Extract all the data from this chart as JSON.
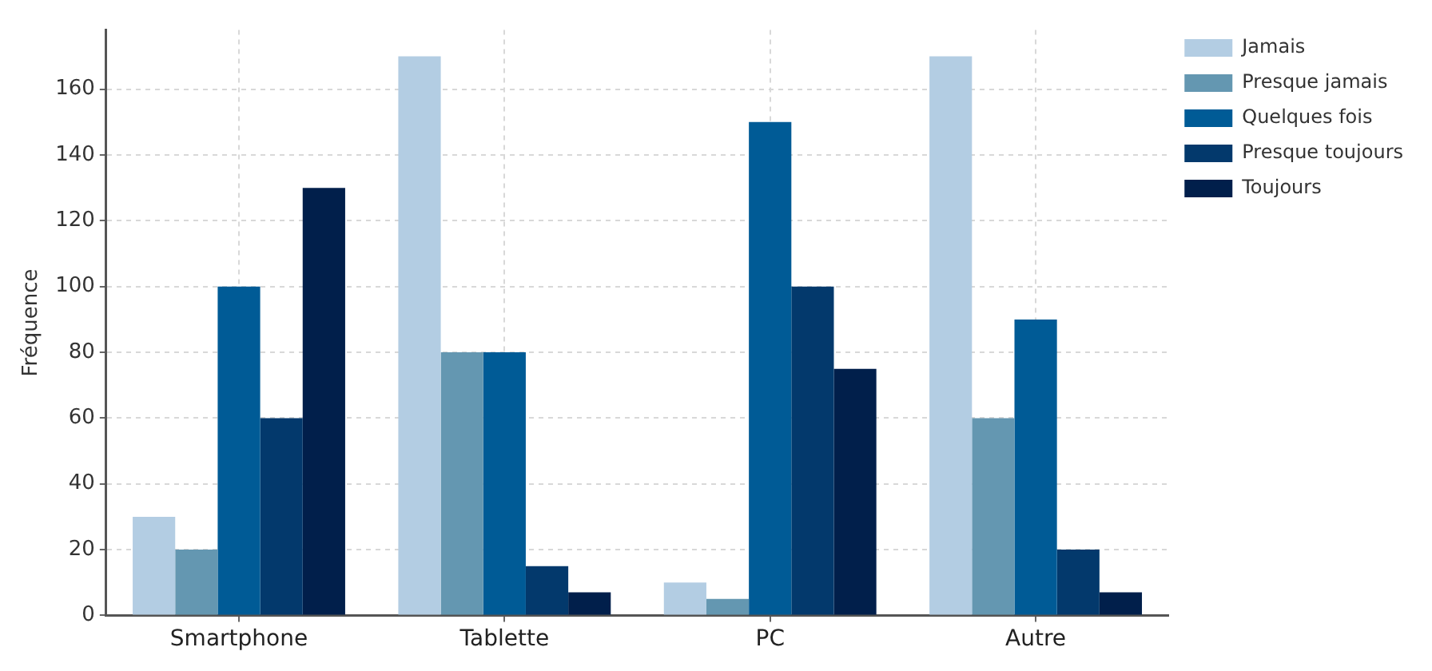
{
  "chart_data": {
    "type": "bar",
    "ylabel": "Fréquence",
    "categories": [
      "Smartphone",
      "Tablette",
      "PC",
      "Autre"
    ],
    "series": [
      {
        "name": "Jamais",
        "color": "#b3cde3",
        "values": [
          30,
          170,
          10,
          170
        ]
      },
      {
        "name": "Presque jamais",
        "color": "#6497b1",
        "values": [
          20,
          80,
          5,
          60
        ]
      },
      {
        "name": "Quelques fois",
        "color": "#005b96",
        "values": [
          100,
          80,
          150,
          90
        ]
      },
      {
        "name": "Presque toujours",
        "color": "#03396c",
        "values": [
          60,
          15,
          100,
          20
        ]
      },
      {
        "name": "Toujours",
        "color": "#011f4b",
        "values": [
          130,
          7,
          75,
          7
        ]
      }
    ],
    "ylim": [
      0,
      178
    ],
    "yticks": [
      0,
      20,
      40,
      60,
      80,
      100,
      120,
      140,
      160
    ],
    "grid": true,
    "legend": "top right"
  }
}
